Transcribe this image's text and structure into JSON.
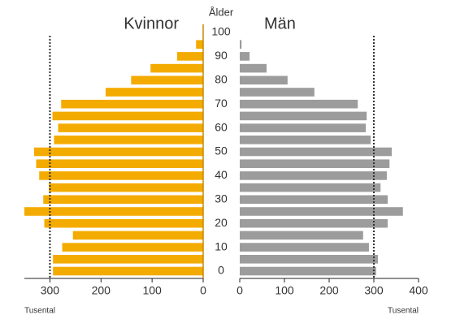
{
  "chart_data": {
    "type": "pyramid",
    "y_label": "Ålder",
    "x_label": "Tusental",
    "categories": [
      "0",
      null,
      "10",
      null,
      "20",
      null,
      "30",
      null,
      "40",
      null,
      "50",
      null,
      "60",
      null,
      "70",
      null,
      "80",
      null,
      "90",
      null,
      "100"
    ],
    "reference_line": 300,
    "series": [
      {
        "name": "Kvinnor",
        "color": "#f4ab00",
        "side": "left",
        "xlim": [
          0,
          350
        ],
        "xticks": [
          0,
          100,
          200,
          300
        ],
        "values": [
          294,
          294,
          276,
          255,
          311,
          350,
          313,
          302,
          321,
          327,
          331,
          292,
          284,
          295,
          278,
          191,
          141,
          103,
          51,
          14,
          null
        ]
      },
      {
        "name": "Män",
        "color": "#9c9c9c",
        "side": "right",
        "xlim": [
          0,
          400
        ],
        "xticks": [
          0,
          100,
          200,
          300,
          400
        ],
        "values": [
          305,
          309,
          289,
          276,
          331,
          365,
          331,
          315,
          329,
          335,
          340,
          293,
          282,
          284,
          264,
          167,
          107,
          60,
          22,
          4,
          null
        ]
      }
    ]
  }
}
